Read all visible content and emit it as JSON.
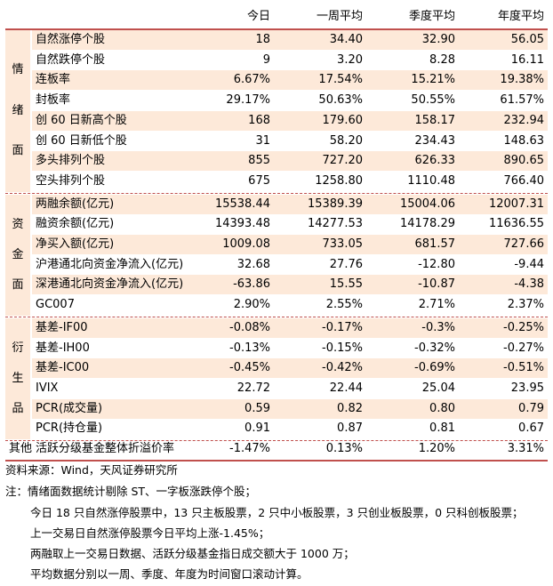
{
  "header": [
    "今日",
    "一周平均",
    "季度平均",
    "年度平均"
  ],
  "sections": [
    {
      "name": "情绪面",
      "chars": [
        "情",
        "绪",
        "面"
      ],
      "rows": [
        {
          "label": "自然涨停个股",
          "values": [
            "18",
            "34.40",
            "32.90",
            "56.05"
          ]
        },
        {
          "label": "自然跌停个股",
          "values": [
            "9",
            "3.20",
            "8.28",
            "16.11"
          ]
        },
        {
          "label": "连板率",
          "values": [
            "6.67%",
            "17.54%",
            "15.21%",
            "19.38%"
          ]
        },
        {
          "label": "封板率",
          "values": [
            "29.17%",
            "50.63%",
            "50.55%",
            "61.57%"
          ]
        },
        {
          "label": "创 60 日新高个股",
          "values": [
            "168",
            "179.60",
            "158.17",
            "232.94"
          ]
        },
        {
          "label": "创 60 日新低个股",
          "values": [
            "31",
            "58.20",
            "234.43",
            "148.63"
          ]
        },
        {
          "label": "多头排列个股",
          "values": [
            "855",
            "727.20",
            "626.33",
            "890.65"
          ]
        },
        {
          "label": "空头排列个股",
          "values": [
            "675",
            "1258.80",
            "1110.48",
            "766.40"
          ]
        }
      ]
    },
    {
      "name": "资金面",
      "chars": [
        "资",
        "金",
        "面"
      ],
      "rows": [
        {
          "label": "两融余额(亿元)",
          "values": [
            "15538.44",
            "15389.39",
            "15004.06",
            "12007.31"
          ]
        },
        {
          "label": "融资余额(亿元)",
          "values": [
            "14393.48",
            "14277.53",
            "14178.29",
            "11636.55"
          ]
        },
        {
          "label": "净买入额(亿元)",
          "values": [
            "1009.08",
            "733.05",
            "681.57",
            "727.66"
          ]
        },
        {
          "label": "沪港通北向资金净流入(亿元)",
          "values": [
            "32.68",
            "27.76",
            "-12.80",
            "-9.44"
          ]
        },
        {
          "label": "深港通北向资金净流入(亿元)",
          "values": [
            "-63.86",
            "15.55",
            "-10.87",
            "-4.38"
          ]
        },
        {
          "label": "GC007",
          "values": [
            "2.90%",
            "2.55%",
            "2.71%",
            "2.37%"
          ]
        }
      ]
    },
    {
      "name": "衍生品",
      "chars": [
        "衍",
        "生",
        "品"
      ],
      "rows": [
        {
          "label": "基差-IF00",
          "values": [
            "-0.08%",
            "-0.17%",
            "-0.3%",
            "-0.25%"
          ]
        },
        {
          "label": "基差-IH00",
          "values": [
            "-0.13%",
            "-0.15%",
            "-0.32%",
            "-0.27%"
          ]
        },
        {
          "label": "基差-IC00",
          "values": [
            "-0.45%",
            "-0.42%",
            "-0.69%",
            "-0.51%"
          ]
        },
        {
          "label": "IVIX",
          "values": [
            "22.72",
            "22.44",
            "25.04",
            "23.95"
          ]
        },
        {
          "label": "PCR(成交量)",
          "values": [
            "0.59",
            "0.82",
            "0.80",
            "0.79"
          ]
        },
        {
          "label": "PCR(持仓量)",
          "values": [
            "0.91",
            "0.87",
            "0.81",
            "0.67"
          ]
        }
      ]
    }
  ],
  "other": {
    "label": "其他",
    "row_label": "活跃分级基金整体折溢价率",
    "values": [
      "-1.47%",
      "0.13%",
      "1.20%",
      "3.31%"
    ]
  },
  "source": "资料来源：Wind，天风证券研究所",
  "notes": [
    "注：情绪面数据统计剔除 ST、一字板涨跌停个股；",
    "今日 18 只自然涨停股票中，13 只主板股票，2 只中小板股票，3 只创业板股票，0 只科创板股票；",
    "上一交易日自然涨停股票今日平均上涨-1.45%；",
    "两融取上一交易日数据、活跃分级基金指日成交额大于 1000 万；",
    "平均数据分别以一周、季度、年度为时间窗口滚动计算。"
  ],
  "colors": {
    "shade": "#fde9d9",
    "rule": "#c0504d"
  }
}
